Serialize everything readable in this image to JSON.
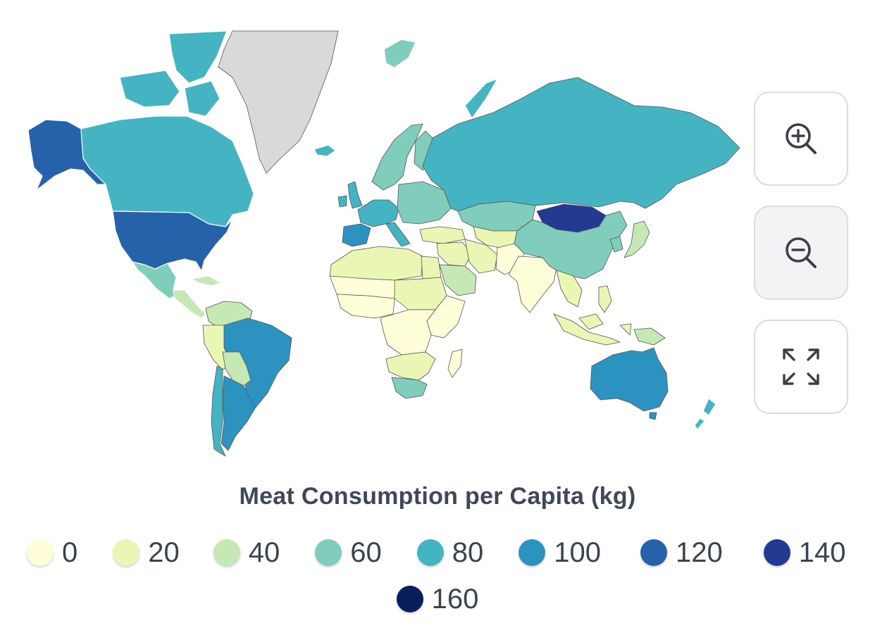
{
  "map": {
    "metric_title": "Meat Consumption per Capita (kg)",
    "no_data_color": "#d9d9d9",
    "regions": [
      {
        "name": "Greenland",
        "value": null
      },
      {
        "name": "Alaska (USA)",
        "value": 120
      },
      {
        "name": "Canada",
        "value": 90
      },
      {
        "name": "Canadian Arctic Islands",
        "value": 90
      },
      {
        "name": "United States",
        "value": 125
      },
      {
        "name": "Mexico",
        "value": 70
      },
      {
        "name": "Central America",
        "value": 50
      },
      {
        "name": "Cuba",
        "value": 40
      },
      {
        "name": "Colombia & Venezuela",
        "value": 45
      },
      {
        "name": "Peru",
        "value": 30
      },
      {
        "name": "Brazil",
        "value": 100
      },
      {
        "name": "Bolivia & Paraguay",
        "value": 50
      },
      {
        "name": "Argentina",
        "value": 110
      },
      {
        "name": "Chile",
        "value": 80
      },
      {
        "name": "Iceland",
        "value": 85
      },
      {
        "name": "Scandinavia",
        "value": 60
      },
      {
        "name": "Finland",
        "value": 70
      },
      {
        "name": "United Kingdom",
        "value": 85
      },
      {
        "name": "Ireland",
        "value": 90
      },
      {
        "name": "Western Europe",
        "value": 80
      },
      {
        "name": "Spain & Portugal",
        "value": 100
      },
      {
        "name": "Italy",
        "value": 80
      },
      {
        "name": "Eastern Europe",
        "value": 65
      },
      {
        "name": "Turkey",
        "value": 30
      },
      {
        "name": "Russia",
        "value": 80
      },
      {
        "name": "Svalbard",
        "value": 75
      },
      {
        "name": "Novaya Zemlya",
        "value": 80
      },
      {
        "name": "Kazakhstan",
        "value": 65
      },
      {
        "name": "Central Asia",
        "value": 35
      },
      {
        "name": "Middle East",
        "value": 30
      },
      {
        "name": "Saudi Arabia",
        "value": 50
      },
      {
        "name": "Iran",
        "value": 25
      },
      {
        "name": "Afghanistan & Pakistan",
        "value": 15
      },
      {
        "name": "India",
        "value": 5
      },
      {
        "name": "China",
        "value": 75
      },
      {
        "name": "Mongolia",
        "value": 140
      },
      {
        "name": "Korea",
        "value": 70
      },
      {
        "name": "Japan",
        "value": 55
      },
      {
        "name": "Southeast Asia",
        "value": 30
      },
      {
        "name": "Philippines",
        "value": 35
      },
      {
        "name": "Indonesia",
        "value": 20
      },
      {
        "name": "Papua New Guinea",
        "value": 45
      },
      {
        "name": "Australia",
        "value": 115
      },
      {
        "name": "New Zealand",
        "value": 80
      },
      {
        "name": "Tasmania",
        "value": 115
      },
      {
        "name": "North Africa",
        "value": 25
      },
      {
        "name": "Egypt",
        "value": 30
      },
      {
        "name": "Sahel",
        "value": 15
      },
      {
        "name": "West Africa",
        "value": 12
      },
      {
        "name": "Central Africa",
        "value": 10
      },
      {
        "name": "East Africa",
        "value": 10
      },
      {
        "name": "Sudan",
        "value": 20
      },
      {
        "name": "Southern Africa",
        "value": 20
      },
      {
        "name": "South Africa",
        "value": 60
      },
      {
        "name": "Madagascar",
        "value": 10
      }
    ]
  },
  "controls": {
    "zoom_in_icon": "zoom-in-icon",
    "zoom_out_icon": "zoom-out-icon",
    "fit_icon": "expand-arrows-icon"
  },
  "legend": {
    "title": "Meat Consumption per Capita (kg)",
    "items": [
      {
        "label": "0",
        "value": 0,
        "color": "#fefed8"
      },
      {
        "label": "20",
        "value": 20,
        "color": "#eaf6b3"
      },
      {
        "label": "40",
        "value": 40,
        "color": "#c5e8b4"
      },
      {
        "label": "60",
        "value": 60,
        "color": "#80cdbb"
      },
      {
        "label": "80",
        "value": 80,
        "color": "#45b4c2"
      },
      {
        "label": "100",
        "value": 100,
        "color": "#2c93c0"
      },
      {
        "label": "120",
        "value": 120,
        "color": "#2562aa"
      },
      {
        "label": "140",
        "value": 140,
        "color": "#233a93"
      },
      {
        "label": "160",
        "value": 160,
        "color": "#0b1e5c"
      }
    ]
  }
}
